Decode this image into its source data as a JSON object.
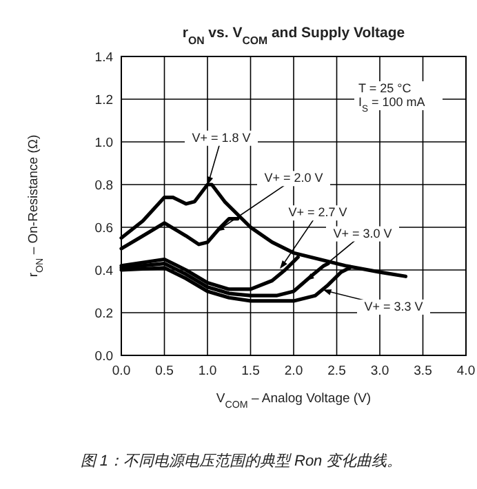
{
  "chart_data": {
    "type": "line",
    "title": "r$_{ON}$ vs. V$_{COM}$ and Supply Voltage",
    "xlabel": "V$_{COM}$ – Analog Voltage (V)",
    "ylabel": "r$_{ON}$ – On-Resistance (Ω)",
    "xlim": [
      0,
      4
    ],
    "ylim": [
      0,
      1.4
    ],
    "xticks": [
      {
        "value": 0,
        "label": "0.0"
      },
      {
        "value": 0.5,
        "label": "0.5"
      },
      {
        "value": 1,
        "label": "1.0"
      },
      {
        "value": 1.5,
        "label": "1.5"
      },
      {
        "value": 2,
        "label": "2.0"
      },
      {
        "value": 2.5,
        "label": "2.5"
      },
      {
        "value": 3,
        "label": "3.0"
      },
      {
        "value": 3.5,
        "label": "3.5"
      },
      {
        "value": 4,
        "label": "4.0"
      }
    ],
    "yticks": [
      {
        "value": 0,
        "label": "0.0"
      },
      {
        "value": 0.2,
        "label": "0.2"
      },
      {
        "value": 0.4,
        "label": "0.4"
      },
      {
        "value": 0.6,
        "label": "0.6"
      },
      {
        "value": 0.8,
        "label": "0.8"
      },
      {
        "value": 1,
        "label": "1.0"
      },
      {
        "value": 1.2,
        "label": "1.2"
      },
      {
        "value": 1.4,
        "label": "1.4"
      }
    ],
    "grid": true,
    "marker": "none",
    "line_style": "solid",
    "series": [
      {
        "name": "V+ = 1.8 V",
        "color": "#000000",
        "x": [
          0,
          0.25,
          0.5,
          0.6,
          0.75,
          0.85,
          1.0,
          1.05,
          1.2,
          1.5,
          1.75,
          2.0,
          2.3,
          2.6,
          3.0,
          3.3
        ],
        "values": [
          0.55,
          0.63,
          0.74,
          0.74,
          0.71,
          0.72,
          0.8,
          0.8,
          0.72,
          0.6,
          0.53,
          0.48,
          0.45,
          0.42,
          0.39,
          0.37
        ]
      },
      {
        "name": "V+ = 2.0 V",
        "color": "#000000",
        "x": [
          0,
          0.25,
          0.5,
          0.75,
          0.9,
          1.0,
          1.15,
          1.25,
          1.35
        ],
        "values": [
          0.5,
          0.56,
          0.62,
          0.56,
          0.52,
          0.53,
          0.6,
          0.64,
          0.64
        ]
      },
      {
        "name": "V+ = 2.7 V",
        "color": "#000000",
        "x": [
          0,
          0.5,
          0.75,
          1.0,
          1.25,
          1.5,
          1.75,
          1.9,
          2.0,
          2.05
        ],
        "values": [
          0.42,
          0.45,
          0.4,
          0.34,
          0.31,
          0.31,
          0.35,
          0.4,
          0.44,
          0.46
        ]
      },
      {
        "name": "V+ = 3.0 V",
        "color": "#000000",
        "x": [
          0,
          0.5,
          0.75,
          1.0,
          1.25,
          1.5,
          1.8,
          2.0,
          2.2,
          2.35,
          2.4
        ],
        "values": [
          0.41,
          0.43,
          0.38,
          0.32,
          0.29,
          0.28,
          0.28,
          0.3,
          0.37,
          0.42,
          0.43
        ]
      },
      {
        "name": "V+ = 3.3 V",
        "color": "#000000",
        "x": [
          0,
          0.5,
          0.75,
          1.0,
          1.25,
          1.5,
          2.0,
          2.25,
          2.4,
          2.55,
          2.65
        ],
        "values": [
          0.4,
          0.41,
          0.36,
          0.3,
          0.27,
          0.255,
          0.255,
          0.28,
          0.33,
          0.39,
          0.41
        ]
      }
    ],
    "annotations": [
      "T = 25 °C",
      "I$_{S}$ = 100 mA",
      "图 1：不同电源电压范围的典型 Ron 变化曲线。"
    ]
  }
}
